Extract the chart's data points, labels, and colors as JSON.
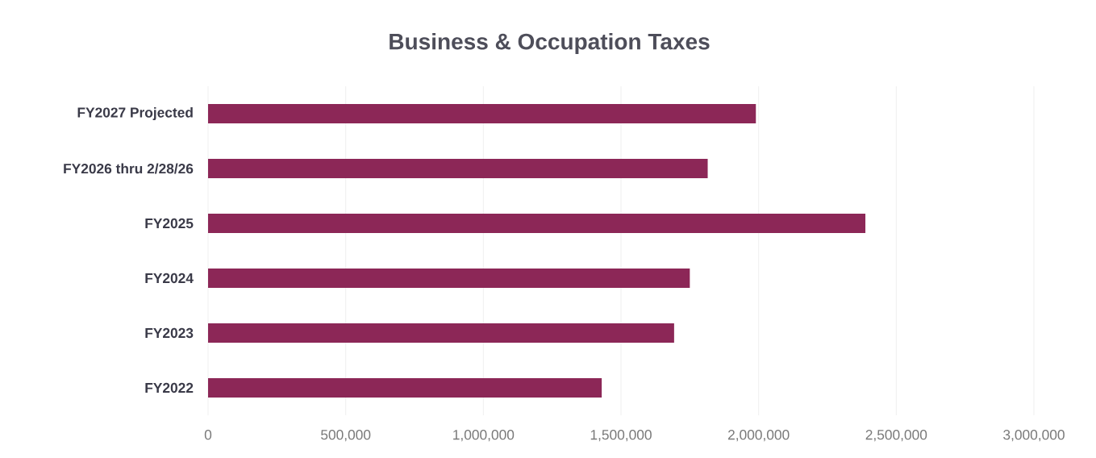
{
  "chart_data": {
    "type": "bar",
    "orientation": "horizontal",
    "title": "Business & Occupation Taxes",
    "categories": [
      "FY2027 Projected",
      "FY2026 thru 2/28/26",
      "FY2025",
      "FY2024",
      "FY2023",
      "FY2022"
    ],
    "values": [
      1990000,
      1815000,
      2388000,
      1750000,
      1693000,
      1430000
    ],
    "color": "#8c2757",
    "xlim": [
      0,
      3000000
    ],
    "xticks": [
      {
        "value": 0,
        "label": "0"
      },
      {
        "value": 500000,
        "label": "500,000"
      },
      {
        "value": 1000000,
        "label": "1,000,000"
      },
      {
        "value": 1500000,
        "label": "1,500,000"
      },
      {
        "value": 2000000,
        "label": "2,000,000"
      },
      {
        "value": 2500000,
        "label": "2,500,000"
      },
      {
        "value": 3000000,
        "label": "3,000,000"
      }
    ],
    "grid": "x"
  }
}
